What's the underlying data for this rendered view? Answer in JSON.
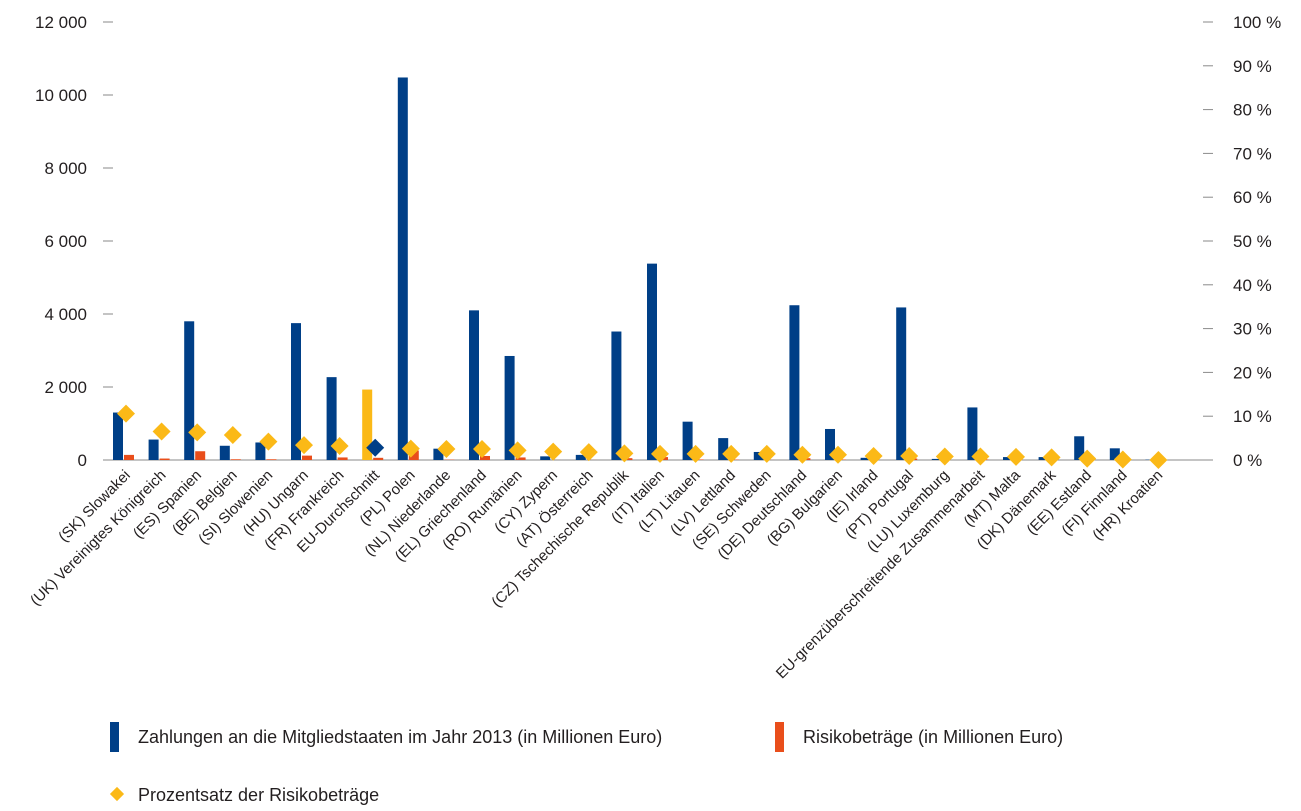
{
  "chart_data": {
    "type": "bar",
    "categories": [
      "(SK) Slowakei",
      "(UK) Vereinigtes Königreich",
      "(ES) Spanien",
      "(BE) Belgien",
      "(SI) Slowenien",
      "(HU) Ungarn",
      "(FR) Frankreich",
      "EU-Durchschnitt",
      "(PL) Polen",
      "(NL) Niederlande",
      "(EL) Griechenland",
      "(RO) Rumänien",
      "(CY) Zypern",
      "(AT) Österreich",
      "(CZ) Tschechische Republik",
      "(IT) Italien",
      "(LT) Litauen",
      "(LV) Lettland",
      "(SE) Schweden",
      "(DE) Deutschland",
      "(BG) Bulgarien",
      "(IE) Irland",
      "(PT) Portugal",
      "(LU) Luxemburg",
      "EU-grenzüberschreitende Zusammenarbeit",
      "(MT) Malta",
      "(DK) Dänemark",
      "(EE) Estland",
      "(FI) Finnland",
      "(HR) Kroatien"
    ],
    "series": [
      {
        "name": "Zahlungen an die Mitgliedstaaten im Jahr 2013 (in Millionen Euro)",
        "axis": "left",
        "color": "#003f87",
        "values": [
          1300,
          560,
          3800,
          390,
          480,
          3750,
          2270,
          1930,
          10480,
          310,
          4100,
          2850,
          100,
          140,
          3520,
          5380,
          1050,
          600,
          220,
          4240,
          850,
          60,
          4180,
          30,
          1440,
          80,
          80,
          650,
          320,
          10
        ]
      },
      {
        "name": "Risikobeträge (in Millionen Euro)",
        "axis": "left",
        "color": "#e94e1b",
        "values": [
          140,
          40,
          240,
          20,
          20,
          120,
          70,
          60,
          260,
          10,
          110,
          70,
          2,
          3,
          50,
          80,
          15,
          10,
          3,
          50,
          12,
          1,
          40,
          0,
          15,
          1,
          1,
          3,
          1,
          0
        ]
      },
      {
        "name": "Prozentsatz der Risikobeträge",
        "axis": "right",
        "color": "#fbb917",
        "marker": "diamond",
        "values": [
          10.6,
          6.5,
          6.3,
          5.7,
          4.2,
          3.4,
          3.2,
          2.8,
          2.6,
          2.5,
          2.5,
          2.2,
          1.9,
          1.8,
          1.5,
          1.4,
          1.4,
          1.4,
          1.4,
          1.2,
          1.2,
          0.9,
          0.9,
          0.8,
          0.8,
          0.7,
          0.6,
          0.3,
          0.1,
          0.0
        ]
      }
    ],
    "highlight_index": 7,
    "highlight_bar_color": "#fbb917",
    "highlight_marker_color": "#003f87",
    "yticks_left": [
      "0",
      "2 000",
      "4 000",
      "6 000",
      "8 000",
      "10 000",
      "12 000"
    ],
    "yticks_right": [
      "0 %",
      "10 %",
      "20 %",
      "30 %",
      "40 %",
      "50 %",
      "60 %",
      "70 %",
      "80 %",
      "90 %",
      "100 %"
    ],
    "ylim_left": [
      0,
      12000
    ],
    "ylim_right": [
      0,
      100
    ],
    "legend_placement": "bottom"
  },
  "legend": {
    "payments": "Zahlungen an die Mitgliedstaaten im Jahr 2013 (in Millionen Euro)",
    "risk": "Risikobeträge (in Millionen Euro)",
    "percent": "Prozentsatz der Risikobeträge"
  }
}
